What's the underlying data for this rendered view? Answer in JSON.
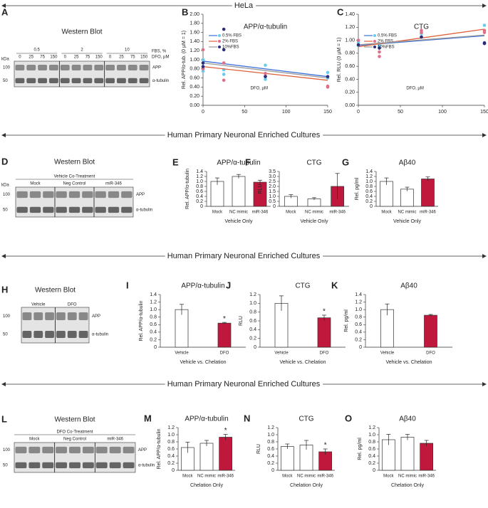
{
  "sections": [
    "HeLa",
    "Human Primary Neuronal Enriched Cultures",
    "Human Primary Neuronal Enriched Cultures",
    "Human Primary Neuronal Enriched Cultures"
  ],
  "blots": [
    {
      "panel": "A",
      "title": "Western Blot",
      "groups": [
        "0.5",
        "2",
        "10"
      ],
      "group_label": "FBS, %",
      "lanes": [
        0,
        25,
        75,
        150
      ],
      "lane_label": "DFO, µM",
      "kda": "kDa",
      "markers": [
        100,
        50
      ],
      "bands": [
        "APP",
        "α-tubulin"
      ]
    },
    {
      "panel": "D",
      "title": "Western Blot",
      "treatment": "Vehicle Co-Treatment",
      "groups": [
        "Mock",
        "Neg Control",
        "miR-346"
      ],
      "kda": "kDa",
      "markers": [
        100,
        50
      ],
      "bands": [
        "APP",
        "α-tubulin"
      ]
    },
    {
      "panel": "H",
      "title": "Western Blot",
      "groups": [
        "Vehicle",
        "DFO"
      ],
      "markers": [
        100,
        50
      ],
      "bands": [
        "APP",
        "α-tubulin"
      ]
    },
    {
      "panel": "L",
      "title": "Western Blot",
      "treatment": "DFO Co-Treatment",
      "groups": [
        "Mock",
        "Neg Control",
        "miR-346"
      ],
      "markers": [
        100,
        50
      ],
      "bands": [
        "APP",
        "α-tubulin"
      ]
    }
  ],
  "chart_data": [
    {
      "panel": "B",
      "type": "scatter",
      "title": "APP/α-tubulin",
      "y_label": "Rel. APP/α-tub. (0 µM = 1)",
      "annotation": "DFO, µM",
      "xlim": [
        0,
        150
      ],
      "xticks": [
        0,
        50,
        100,
        150
      ],
      "ylim": [
        0,
        2
      ],
      "yticks": [
        {
          "value": 0,
          "label": "0.00"
        },
        {
          "value": 0.2,
          "label": "0.20"
        },
        {
          "value": 0.4,
          "label": "0.40"
        },
        {
          "value": 0.6,
          "label": "0.60"
        },
        {
          "value": 0.8,
          "label": "0.80"
        },
        {
          "value": 1,
          "label": "1.00"
        },
        {
          "value": 1.2,
          "label": "1.20"
        },
        {
          "value": 1.4,
          "label": "1.40"
        },
        {
          "value": 1.6,
          "label": "1.60"
        },
        {
          "value": 1.8,
          "label": "1.80"
        },
        {
          "value": 2,
          "label": "2.00"
        }
      ],
      "legend": "top-left",
      "series": [
        {
          "name": "0.5% FBS",
          "color": "#6ccbea",
          "line_color": "#3a6fd8",
          "x": [
            0,
            0,
            25,
            25,
            75,
            75,
            150,
            150
          ],
          "values": [
            1.0,
            0.75,
            0.78,
            0.68,
            0.88,
            0.57,
            0.72,
            0.6
          ],
          "fit_x": [
            0,
            150
          ],
          "fit_values": [
            0.97,
            0.63
          ]
        },
        {
          "name": "2% FBS",
          "color": "#e0708a",
          "line_color": "#e0603a",
          "x": [
            0,
            0,
            25,
            25,
            75,
            75,
            150,
            150
          ],
          "values": [
            1.22,
            0.8,
            0.93,
            0.55,
            0.7,
            0.64,
            0.42,
            0.4
          ],
          "fit_x": [
            0,
            150
          ],
          "fit_values": [
            0.85,
            0.55
          ]
        },
        {
          "name": "10%FBS",
          "color": "#2b2f7a",
          "line_color": "#9a9a9a",
          "x": [
            0,
            0,
            25,
            25,
            75,
            150
          ],
          "values": [
            0.93,
            0.85,
            1.67,
            1.22,
            0.63,
            0.63
          ],
          "fit_x": [
            0,
            150
          ],
          "fit_values": [
            0.93,
            0.6
          ]
        }
      ]
    },
    {
      "panel": "C",
      "type": "scatter",
      "title": "CTG",
      "y_label": "Rel. RLU (0 µM = 1)",
      "annotation": "DFO, µM",
      "xlim": [
        0,
        150
      ],
      "xticks": [
        0,
        50,
        100,
        150
      ],
      "ylim": [
        0,
        1.4
      ],
      "yticks": [
        {
          "value": 0,
          "label": "0.00"
        },
        {
          "value": 0.2,
          "label": "0.20"
        },
        {
          "value": 0.4,
          "label": "0.40"
        },
        {
          "value": 0.6,
          "label": "0.60"
        },
        {
          "value": 0.8,
          "label": "0.80"
        },
        {
          "value": 1,
          "label": "1.00"
        },
        {
          "value": 1.2,
          "label": "1.20"
        },
        {
          "value": 1.4,
          "label": "1.40"
        }
      ],
      "legend": "top-left",
      "series": [
        {
          "name": "0.5% FBS",
          "color": "#6ccbea",
          "line_color": "#3a6fd8",
          "x": [
            0,
            0,
            25,
            25,
            75,
            75,
            150,
            150
          ],
          "values": [
            0.97,
            0.92,
            0.93,
            0.9,
            1.05,
            1.1,
            1.23,
            1.15
          ],
          "fit_x": [
            0,
            150
          ],
          "fit_values": [
            0.92,
            1.07
          ]
        },
        {
          "name": "2% FBS",
          "color": "#e0708a",
          "line_color": "#e0603a",
          "x": [
            0,
            25,
            25,
            75,
            75,
            150,
            150
          ],
          "values": [
            1.0,
            0.82,
            0.75,
            1.12,
            1.15,
            1.15,
            1.12
          ],
          "fit_x": [
            0,
            150
          ],
          "fit_values": [
            0.9,
            1.17
          ]
        },
        {
          "name": "10%FBS",
          "color": "#2b2f7a",
          "line_color": "#9a9a9a",
          "x": [
            0,
            25,
            75,
            150,
            150
          ],
          "values": [
            0.93,
            0.88,
            1.05,
            0.96,
            0.95
          ],
          "fit_x": [
            0,
            150
          ],
          "fit_values": [
            0.93,
            1.08
          ]
        }
      ]
    },
    {
      "panel": "E",
      "type": "bar",
      "title": "APP/α-tubulin",
      "y_label": "Rel. APP/α-tubulin",
      "x_label": "Vehicle Only",
      "categories": [
        "Mock",
        "NC mimic",
        "miR-346"
      ],
      "values": [
        1.0,
        1.2,
        0.97
      ],
      "errors": [
        0.14,
        0.08,
        0.08
      ],
      "colors": [
        "#ffffff",
        "#ffffff",
        "#c0183c"
      ],
      "ylim": [
        0,
        1.4
      ],
      "yticks": [
        0,
        0.2,
        0.4,
        0.6,
        0.8,
        {
          "value": 1,
          "label": "1.0"
        },
        1.2,
        1.4
      ]
    },
    {
      "panel": "F",
      "type": "bar",
      "title": "CTG",
      "y_label": "RLU",
      "x_label": "Vehicle Only",
      "categories": [
        "Mock",
        "NC mimic",
        "miR-346"
      ],
      "values": [
        1.0,
        0.75,
        2.0
      ],
      "errors": [
        0.17,
        0.12,
        1.3
      ],
      "colors": [
        "#ffffff",
        "#ffffff",
        "#c0183c"
      ],
      "ylim": [
        0,
        3.5
      ],
      "yticks": [
        0,
        0.5,
        {
          "value": 1,
          "label": "1.0"
        },
        1.5,
        {
          "value": 2,
          "label": "2.0"
        },
        2.5,
        {
          "value": 3,
          "label": "3.0"
        },
        3.5
      ]
    },
    {
      "panel": "G",
      "type": "bar",
      "title": "Aβ40",
      "y_label": "Rel. pg/ml",
      "x_label": "Vehicle Only",
      "categories": [
        "Mock",
        "NC mimic",
        "miR-346"
      ],
      "values": [
        1.0,
        0.69,
        1.1
      ],
      "errors": [
        0.14,
        0.08,
        0.08
      ],
      "colors": [
        "#ffffff",
        "#ffffff",
        "#c0183c"
      ],
      "ylim": [
        0,
        1.4
      ],
      "yticks": [
        0,
        0.2,
        0.4,
        0.6,
        0.8,
        {
          "value": 1,
          "label": "1.0"
        },
        1.2,
        1.4
      ]
    },
    {
      "panel": "I",
      "type": "bar",
      "title": "APP/α-tubulin",
      "y_label": "Rel. APP/α-tubulin",
      "x_label": "Vehicle vs. Chelation",
      "categories": [
        "Vehicle",
        "DFO"
      ],
      "values": [
        1.0,
        0.64
      ],
      "errors": [
        0.14,
        0.02
      ],
      "colors": [
        "#ffffff",
        "#c0183c"
      ],
      "significance": [
        null,
        "*"
      ],
      "ylim": [
        0,
        1.4
      ],
      "yticks": [
        0,
        0.2,
        0.4,
        0.6,
        0.8,
        {
          "value": 1,
          "label": "1.0"
        },
        1.2,
        1.4
      ]
    },
    {
      "panel": "J",
      "type": "bar",
      "title": "CTG",
      "y_label": "RLU",
      "x_label": "Vehicle vs. Chelation",
      "categories": [
        "Vehicle",
        "DFO"
      ],
      "values": [
        1.0,
        0.67
      ],
      "errors": [
        0.17,
        0.06
      ],
      "colors": [
        "#ffffff",
        "#c0183c"
      ],
      "significance": [
        null,
        "*"
      ],
      "ylim": [
        0,
        1.2
      ],
      "yticks": [
        0,
        0.2,
        0.4,
        0.6,
        0.8,
        {
          "value": 1,
          "label": "1.0"
        },
        1.2
      ]
    },
    {
      "panel": "K",
      "type": "bar",
      "title": "Aβ40",
      "y_label": "Rel. pg/ml",
      "x_label": "Vehicle vs. Chelation",
      "categories": [
        "Vehicle",
        "DFO"
      ],
      "values": [
        1.0,
        0.85
      ],
      "errors": [
        0.15,
        0.02
      ],
      "colors": [
        "#ffffff",
        "#c0183c"
      ],
      "ylim": [
        0,
        1.4
      ],
      "yticks": [
        0,
        0.2,
        0.4,
        0.6,
        0.8,
        {
          "value": 1,
          "label": "1.0"
        },
        1.2,
        1.4
      ]
    },
    {
      "panel": "M",
      "type": "bar",
      "title": "APP/α-tubulin",
      "y_label": "Rel. APP/α-tubulin",
      "x_label": "Chelation Only",
      "categories": [
        "Mock",
        "NC mimic",
        "miR-346"
      ],
      "values": [
        0.64,
        0.76,
        0.93
      ],
      "errors": [
        0.15,
        0.08,
        0.08
      ],
      "colors": [
        "#ffffff",
        "#ffffff",
        "#c0183c"
      ],
      "significance": [
        null,
        null,
        "*"
      ],
      "ylim": [
        0,
        1.2
      ],
      "yticks": [
        0,
        0.2,
        0.4,
        0.6,
        0.8,
        {
          "value": 1,
          "label": "1.0"
        },
        1.2
      ]
    },
    {
      "panel": "N",
      "type": "bar",
      "title": "CTG",
      "y_label": "RLU",
      "x_label": "Chelation Only",
      "categories": [
        "Mock",
        "NC mimic",
        "miR-346"
      ],
      "values": [
        0.67,
        0.71,
        0.52
      ],
      "errors": [
        0.07,
        0.13,
        0.08
      ],
      "colors": [
        "#ffffff",
        "#ffffff",
        "#c0183c"
      ],
      "significance": [
        null,
        null,
        "*"
      ],
      "ylim": [
        0,
        1.2
      ],
      "yticks": [
        0,
        0.2,
        0.4,
        0.6,
        0.8,
        {
          "value": 1,
          "label": "1.0"
        },
        1.2
      ]
    },
    {
      "panel": "O",
      "type": "bar",
      "title": "Aβ40",
      "y_label": "Rel. pg/ml",
      "x_label": "Chelation Only",
      "categories": [
        "Mock",
        "NC mimic",
        "miR-346"
      ],
      "values": [
        0.86,
        0.93,
        0.76
      ],
      "errors": [
        0.15,
        0.08,
        0.08
      ],
      "colors": [
        "#ffffff",
        "#ffffff",
        "#c0183c"
      ],
      "ylim": [
        0,
        1.2
      ],
      "yticks": [
        0,
        0.2,
        0.4,
        0.6,
        0.8,
        {
          "value": 1,
          "label": "1.0"
        },
        1.2
      ]
    }
  ]
}
